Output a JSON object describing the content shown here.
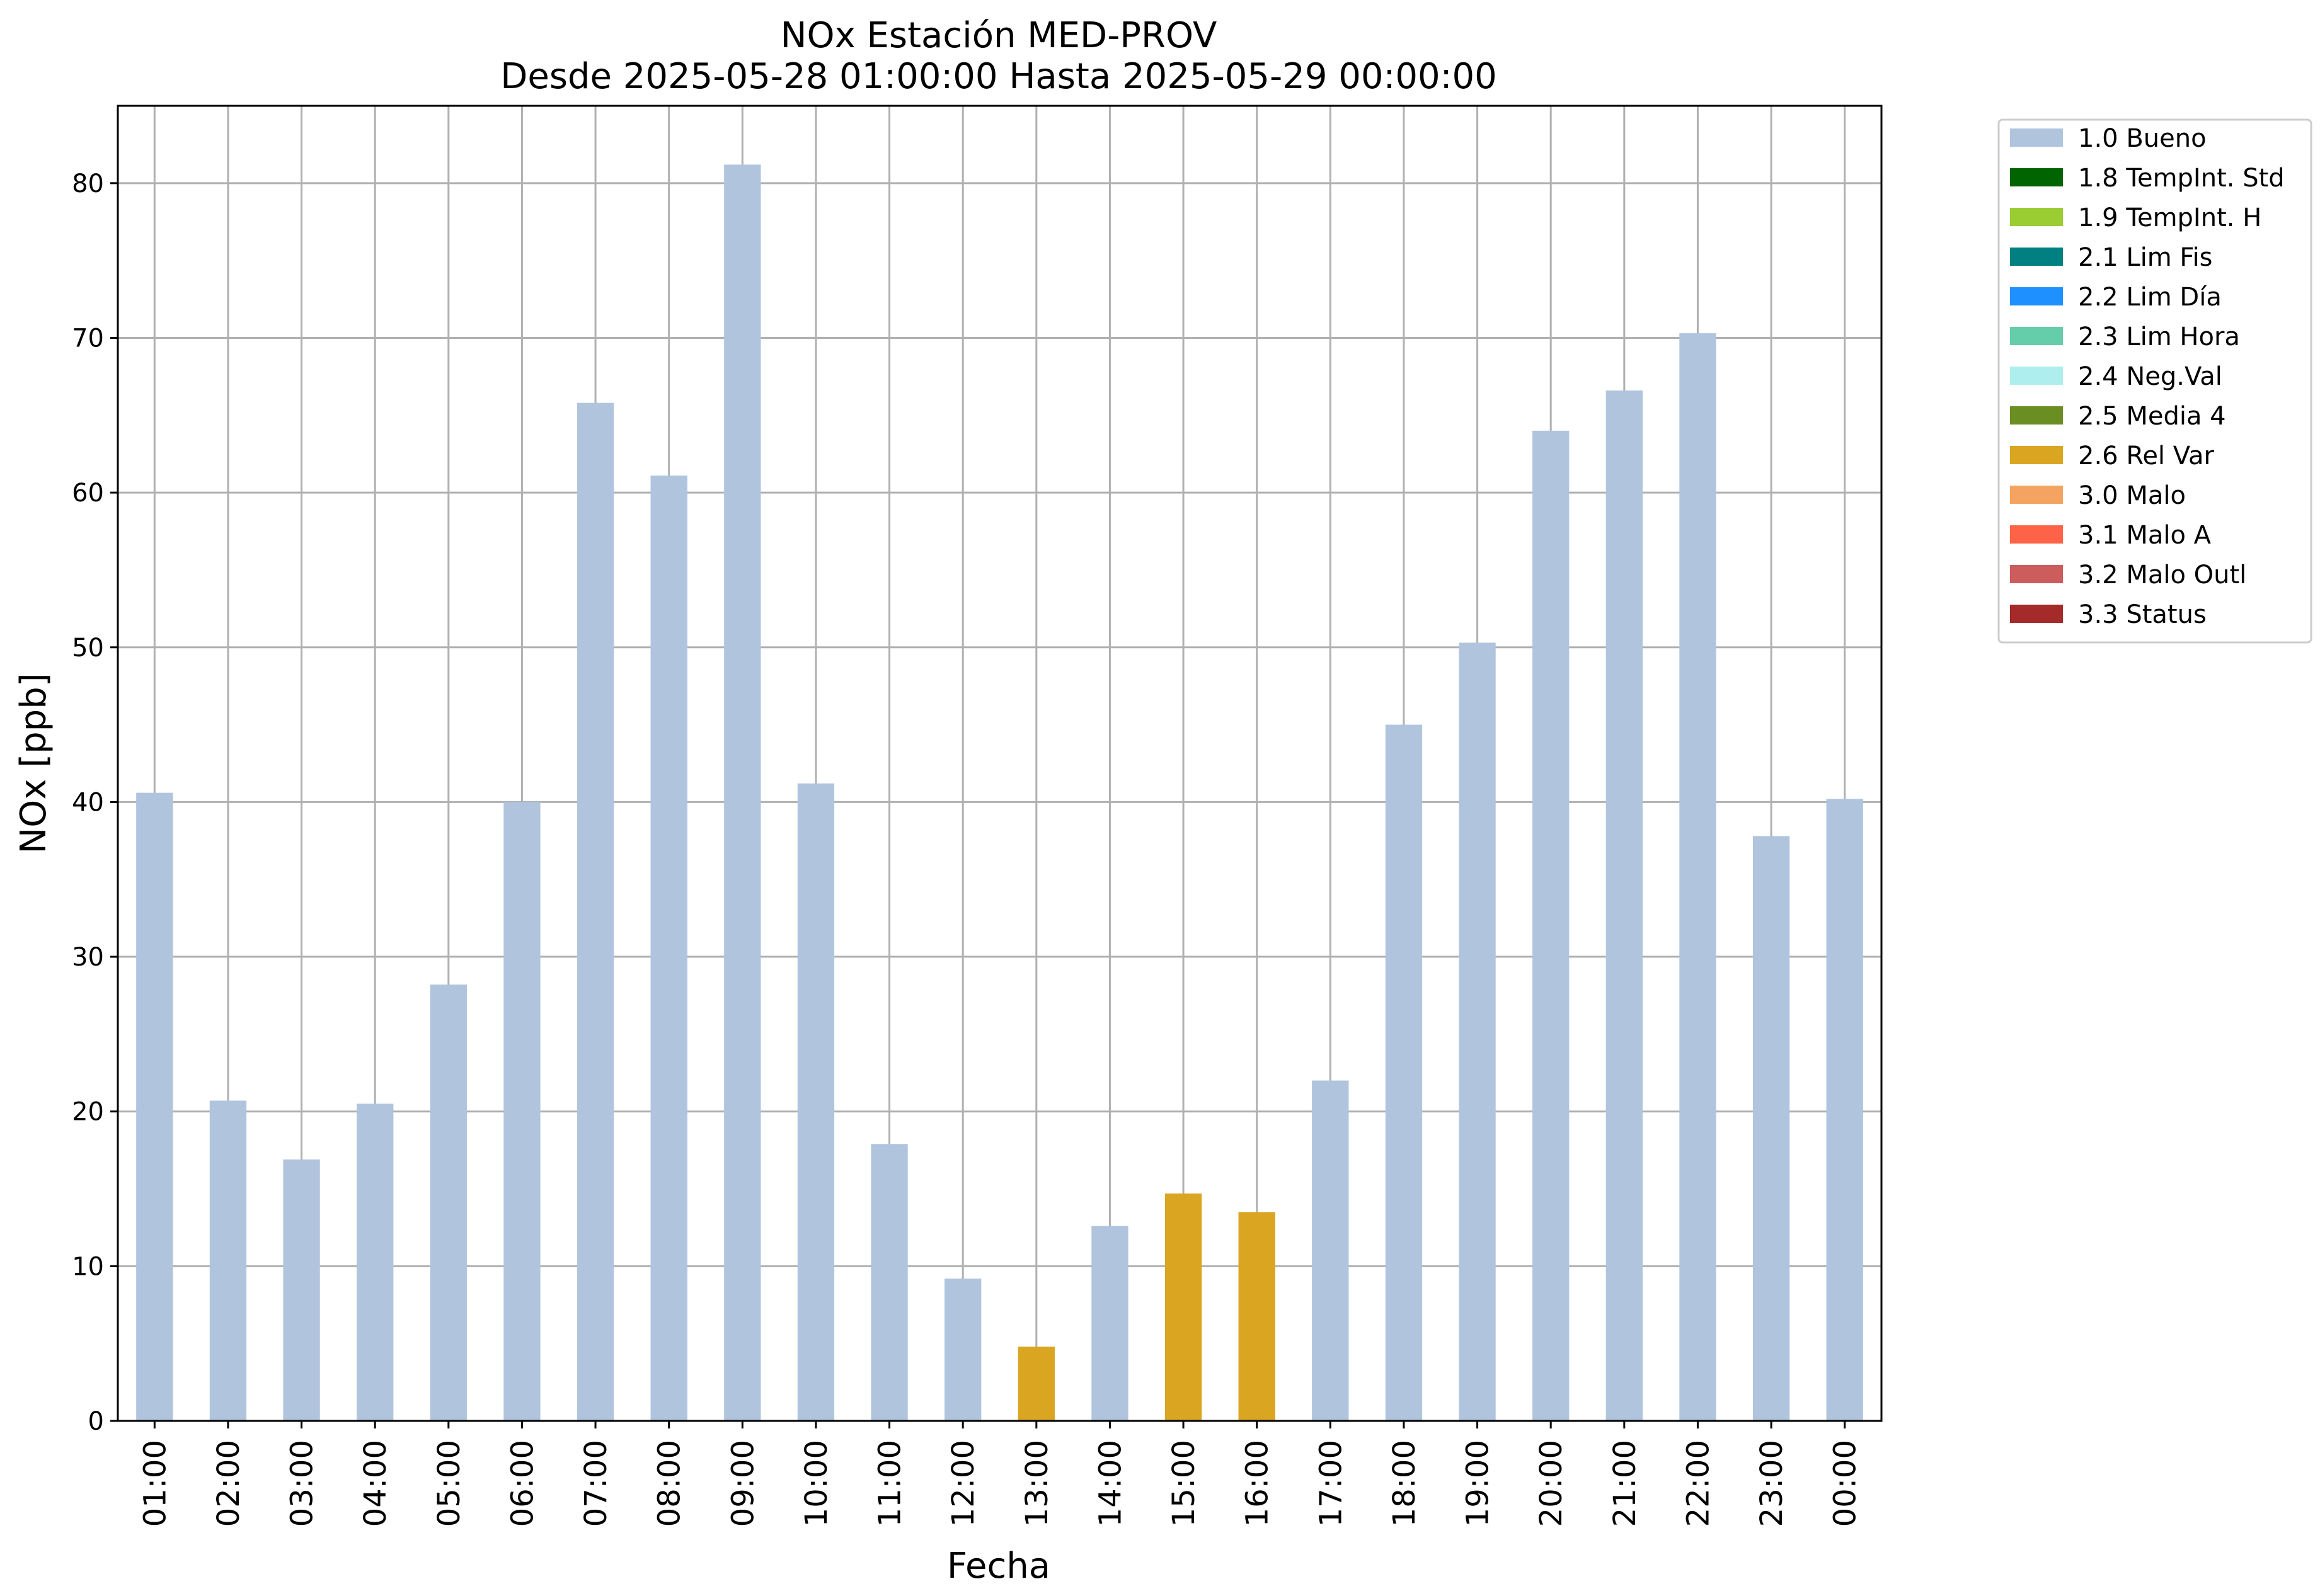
{
  "chart_data": {
    "type": "bar",
    "title": "NOx Estación MED-PROV",
    "subtitle": "Desde 2025-05-28 01:00:00 Hasta 2025-05-29 00:00:00",
    "xlabel": "Fecha",
    "ylabel": "NOx [ppb]",
    "ylim": [
      0,
      85
    ],
    "yticks": [
      0,
      10,
      20,
      30,
      40,
      50,
      60,
      70,
      80
    ],
    "grid": true,
    "legend_position": "outside-top-right",
    "categories": [
      "01:00",
      "02:00",
      "03:00",
      "04:00",
      "05:00",
      "06:00",
      "07:00",
      "08:00",
      "09:00",
      "10:00",
      "11:00",
      "12:00",
      "13:00",
      "14:00",
      "15:00",
      "16:00",
      "17:00",
      "18:00",
      "19:00",
      "20:00",
      "21:00",
      "22:00",
      "23:00",
      "00:00"
    ],
    "values": [
      40.6,
      20.7,
      16.9,
      20.5,
      28.2,
      40.0,
      65.8,
      61.1,
      81.2,
      41.2,
      17.9,
      9.2,
      4.8,
      12.6,
      14.7,
      13.5,
      22.0,
      45.0,
      50.3,
      64.0,
      66.6,
      70.3,
      37.8,
      40.2
    ],
    "flags": [
      "1.0 Bueno",
      "1.0 Bueno",
      "1.0 Bueno",
      "1.0 Bueno",
      "1.0 Bueno",
      "1.0 Bueno",
      "1.0 Bueno",
      "1.0 Bueno",
      "1.0 Bueno",
      "1.0 Bueno",
      "1.0 Bueno",
      "1.0 Bueno",
      "2.6 Rel Var",
      "1.0 Bueno",
      "2.6 Rel Var",
      "2.6 Rel Var",
      "1.0 Bueno",
      "1.0 Bueno",
      "1.0 Bueno",
      "1.0 Bueno",
      "1.0 Bueno",
      "1.0 Bueno",
      "1.0 Bueno",
      "1.0 Bueno"
    ],
    "legend": [
      {
        "label": "1.0 Bueno",
        "color": "#b0c4de"
      },
      {
        "label": "1.8 TempInt. Std",
        "color": "#006400"
      },
      {
        "label": "1.9 TempInt. H",
        "color": "#9acd32"
      },
      {
        "label": "2.1 Lim Fis",
        "color": "#008080"
      },
      {
        "label": "2.2 Lim Día",
        "color": "#1e90ff"
      },
      {
        "label": "2.3 Lim Hora",
        "color": "#66cdaa"
      },
      {
        "label": "2.4 Neg.Val",
        "color": "#afeeee"
      },
      {
        "label": "2.5 Media 4",
        "color": "#6b8e23"
      },
      {
        "label": "2.6 Rel Var",
        "color": "#daa520"
      },
      {
        "label": "3.0 Malo",
        "color": "#f4a460"
      },
      {
        "label": "3.1 Malo A",
        "color": "#ff6347"
      },
      {
        "label": "3.2 Malo Outl",
        "color": "#cd5c5c"
      },
      {
        "label": "3.3 Status",
        "color": "#a52a2a"
      }
    ]
  }
}
